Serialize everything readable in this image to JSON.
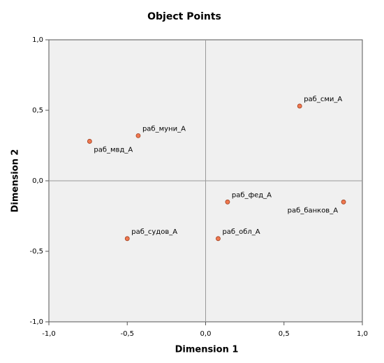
{
  "chart_data": {
    "type": "scatter",
    "title": "Object Points",
    "xlabel": "Dimension 1",
    "ylabel": "Dimension 2",
    "labels": [
      "раб_сми_А",
      "раб_муни_А",
      "раб_мвд_А",
      "раб_фед_А",
      "раб_банков_А",
      "раб_судов_А",
      "раб_обл_А"
    ],
    "x": [
      0.6,
      -0.43,
      -0.74,
      0.14,
      0.88,
      -0.5,
      0.08
    ],
    "y": [
      0.53,
      0.32,
      0.28,
      -0.15,
      -0.15,
      -0.41,
      -0.41
    ],
    "color": "#f07850",
    "xlim": [
      -1,
      1
    ],
    "ylim": [
      -1,
      1
    ],
    "xticks": [
      {
        "value": -1,
        "label": "-1,0"
      },
      {
        "value": -0.5,
        "label": "-0,5"
      },
      {
        "value": 0,
        "label": "0,0"
      },
      {
        "value": 0.5,
        "label": "0,5"
      },
      {
        "value": 1,
        "label": "1,0"
      }
    ],
    "yticks": [
      {
        "value": -1,
        "label": "-1,0"
      },
      {
        "value": -0.5,
        "label": "-0,5"
      },
      {
        "value": 0,
        "label": "0,0"
      },
      {
        "value": 0.5,
        "label": "0,5"
      },
      {
        "value": 1,
        "label": "1,0"
      }
    ]
  }
}
